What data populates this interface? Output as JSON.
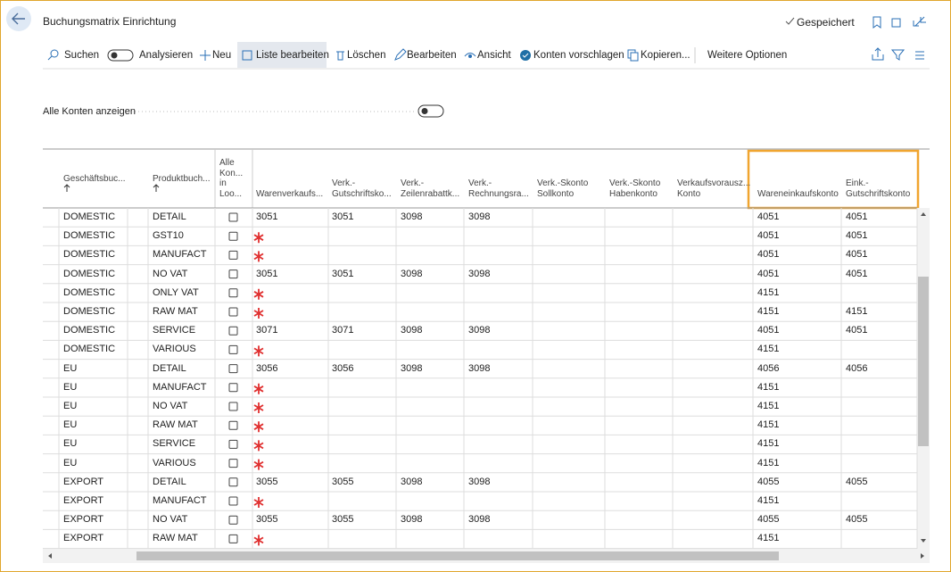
{
  "header": {
    "title": "Buchungsmatrix Einrichtung",
    "status": "Gespeichert"
  },
  "toolbar": {
    "actions": [
      "Suchen",
      "Analysieren",
      "Neu",
      "Liste bearbeiten",
      "Löschen",
      "Bearbeiten",
      "Ansicht",
      "Konten vorschlagen",
      "Kopieren...",
      "Weitere Optionen"
    ]
  },
  "filter": {
    "label": "Alle Konten anzeigen",
    "on": false
  },
  "table": {
    "columns": [
      [
        "Geschäftsbuc..."
      ],
      [
        "Produktbuch..."
      ],
      [
        "Alle",
        "Kon...",
        "in",
        "Loo..."
      ],
      [
        "Warenverkaufs..."
      ],
      [
        "Verk.-",
        "Gutschriftsko..."
      ],
      [
        "Verk.-",
        "Zeilenrabattk..."
      ],
      [
        "Verk.-",
        "Rechnungsra..."
      ],
      [
        "Verk.-Skonto",
        "Sollkonto"
      ],
      [
        "Verk.-Skonto",
        "Habenkonto"
      ],
      [
        "Verkaufsvorausz...",
        "Konto"
      ],
      [
        "Wareneinkaufskonto"
      ],
      [
        "Eink.-",
        "Gutschriftskonto"
      ]
    ],
    "rows": [
      [
        "DOMESTIC",
        "DETAIL",
        false,
        "3051",
        "3051",
        "3098",
        "3098",
        null,
        null,
        null,
        "4051",
        "4051"
      ],
      [
        "DOMESTIC",
        "GST10",
        false,
        null,
        null,
        null,
        null,
        null,
        null,
        null,
        "4051",
        "4051"
      ],
      [
        "DOMESTIC",
        "MANUFACT",
        false,
        null,
        null,
        null,
        null,
        null,
        null,
        null,
        "4051",
        "4051"
      ],
      [
        "DOMESTIC",
        "NO VAT",
        false,
        "3051",
        "3051",
        "3098",
        "3098",
        null,
        null,
        null,
        "4051",
        "4051"
      ],
      [
        "DOMESTIC",
        "ONLY VAT",
        false,
        null,
        null,
        null,
        null,
        null,
        null,
        null,
        "4151",
        null
      ],
      [
        "DOMESTIC",
        "RAW MAT",
        false,
        null,
        null,
        null,
        null,
        null,
        null,
        null,
        "4151",
        "4151"
      ],
      [
        "DOMESTIC",
        "SERVICE",
        false,
        "3071",
        "3071",
        "3098",
        "3098",
        null,
        null,
        null,
        "4051",
        "4051"
      ],
      [
        "DOMESTIC",
        "VARIOUS",
        false,
        null,
        null,
        null,
        null,
        null,
        null,
        null,
        "4151",
        null
      ],
      [
        "EU",
        "DETAIL",
        false,
        "3056",
        "3056",
        "3098",
        "3098",
        null,
        null,
        null,
        "4056",
        "4056"
      ],
      [
        "EU",
        "MANUFACT",
        false,
        null,
        null,
        null,
        null,
        null,
        null,
        null,
        "4151",
        null
      ],
      [
        "EU",
        "NO VAT",
        false,
        null,
        null,
        null,
        null,
        null,
        null,
        null,
        "4151",
        null
      ],
      [
        "EU",
        "RAW MAT",
        false,
        null,
        null,
        null,
        null,
        null,
        null,
        null,
        "4151",
        null
      ],
      [
        "EU",
        "SERVICE",
        false,
        null,
        null,
        null,
        null,
        null,
        null,
        null,
        "4151",
        null
      ],
      [
        "EU",
        "VARIOUS",
        false,
        null,
        null,
        null,
        null,
        null,
        null,
        null,
        "4151",
        null
      ],
      [
        "EXPORT",
        "DETAIL",
        false,
        "3055",
        "3055",
        "3098",
        "3098",
        null,
        null,
        null,
        "4055",
        "4055"
      ],
      [
        "EXPORT",
        "MANUFACT",
        false,
        null,
        null,
        null,
        null,
        null,
        null,
        null,
        "4151",
        null
      ],
      [
        "EXPORT",
        "NO VAT",
        false,
        "3055",
        "3055",
        "3098",
        "3098",
        null,
        null,
        null,
        "4055",
        "4055"
      ],
      [
        "EXPORT",
        "RAW MAT",
        false,
        null,
        null,
        null,
        null,
        null,
        null,
        null,
        "4151",
        null
      ]
    ]
  }
}
